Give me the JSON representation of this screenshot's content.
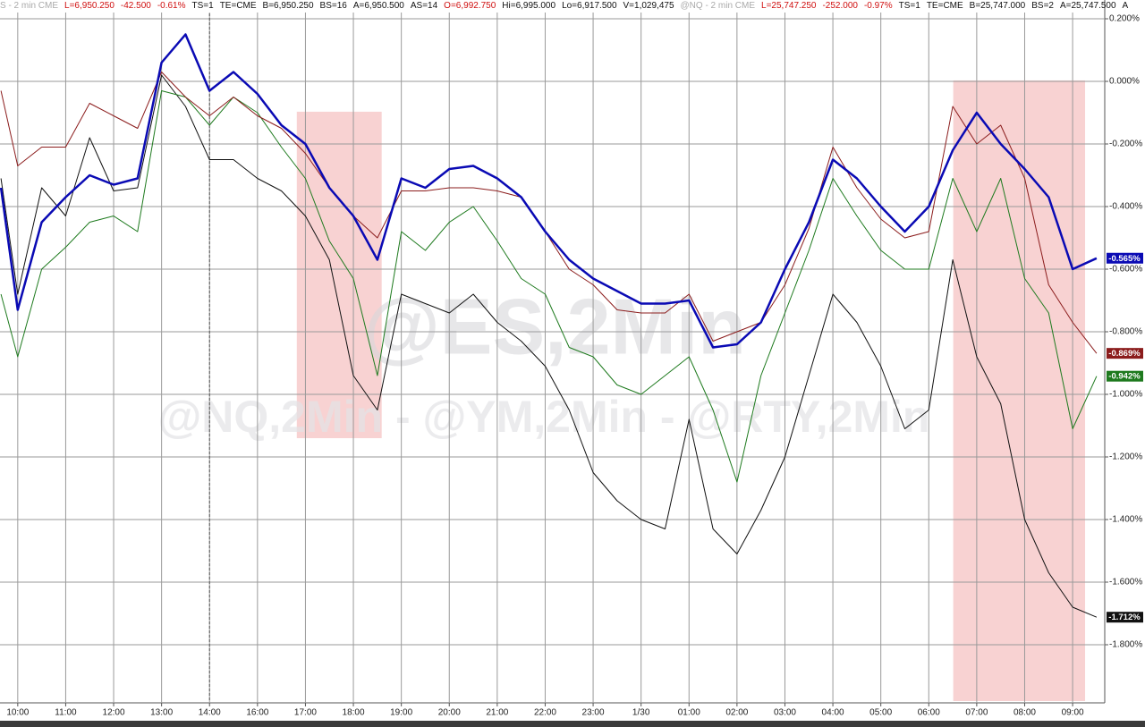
{
  "header": {
    "items": [
      {
        "text": "S - 2 min  CME",
        "color": "#aaaaaa"
      },
      {
        "text": "L=6,950.250",
        "color": "#d01010"
      },
      {
        "text": "-42.500",
        "color": "#d01010"
      },
      {
        "text": "-0.61%",
        "color": "#d01010"
      },
      {
        "text": "TS=1",
        "color": "#111111"
      },
      {
        "text": "TE=CME",
        "color": "#111111"
      },
      {
        "text": "B=6,950.250",
        "color": "#111111"
      },
      {
        "text": "BS=16",
        "color": "#111111"
      },
      {
        "text": "A=6,950.500",
        "color": "#111111"
      },
      {
        "text": "AS=14",
        "color": "#111111"
      },
      {
        "text": "O=6,992.750",
        "color": "#d01010"
      },
      {
        "text": "Hi=6,995.000",
        "color": "#111111"
      },
      {
        "text": "Lo=6,917.500",
        "color": "#111111"
      },
      {
        "text": "V=1,029,475",
        "color": "#111111"
      },
      {
        "text": "@NQ - 2 min  CME",
        "color": "#aaaaaa"
      },
      {
        "text": "L=25,747.250",
        "color": "#d01010"
      },
      {
        "text": "-252.000",
        "color": "#d01010"
      },
      {
        "text": "-0.97%",
        "color": "#d01010"
      },
      {
        "text": "TS=1",
        "color": "#111111"
      },
      {
        "text": "TE=CME",
        "color": "#111111"
      },
      {
        "text": "B=25,747.000",
        "color": "#111111"
      },
      {
        "text": "BS=2",
        "color": "#111111"
      },
      {
        "text": "A=25,747.500",
        "color": "#111111"
      },
      {
        "text": "A",
        "color": "#111111"
      }
    ]
  },
  "chart_data": {
    "type": "line",
    "watermark": [
      "@ES,2Min",
      "@NQ,2Min - @YM,2Min - @RTY,2Min"
    ],
    "xlim": [
      -0.37,
      22.67
    ],
    "ylim": [
      -1.98,
      0.26
    ],
    "xticks": [
      {
        "value": 0,
        "label": "10:00"
      },
      {
        "value": 1,
        "label": "11:00"
      },
      {
        "value": 2,
        "label": "12:00"
      },
      {
        "value": 3,
        "label": "13:00"
      },
      {
        "value": 4,
        "label": "14:00"
      },
      {
        "value": 5,
        "label": "16:00"
      },
      {
        "value": 6,
        "label": "17:00"
      },
      {
        "value": 7,
        "label": "18:00"
      },
      {
        "value": 8,
        "label": "19:00"
      },
      {
        "value": 9,
        "label": "20:00"
      },
      {
        "value": 10,
        "label": "21:00"
      },
      {
        "value": 11,
        "label": "22:00"
      },
      {
        "value": 12,
        "label": "23:00"
      },
      {
        "value": 13,
        "label": "1/30"
      },
      {
        "value": 14,
        "label": "01:00"
      },
      {
        "value": 15,
        "label": "02:00"
      },
      {
        "value": 16,
        "label": "03:00"
      },
      {
        "value": 17,
        "label": "04:00"
      },
      {
        "value": 18,
        "label": "05:00"
      },
      {
        "value": 19,
        "label": "06:00"
      },
      {
        "value": 20,
        "label": "07:00"
      },
      {
        "value": 21,
        "label": "08:00"
      },
      {
        "value": 22,
        "label": "09:00"
      }
    ],
    "yticks": [
      {
        "value": 0.2,
        "label": "0.200%"
      },
      {
        "value": 0,
        "label": "0.000%"
      },
      {
        "value": -0.2,
        "label": "-0.200%"
      },
      {
        "value": -0.4,
        "label": "-0.400%"
      },
      {
        "value": -0.6,
        "label": "-0.600%"
      },
      {
        "value": -0.8,
        "label": "-0.800%"
      },
      {
        "value": -1.0,
        "label": "-1.000%"
      },
      {
        "value": -1.2,
        "label": "-1.200%"
      },
      {
        "value": -1.4,
        "label": "-1.400%"
      },
      {
        "value": -1.6,
        "label": "-1.600%"
      },
      {
        "value": -1.8,
        "label": "-1.800%"
      }
    ],
    "grid": true,
    "session_break": 4,
    "highlights": [
      {
        "x": [
          5.82,
          7.59
        ],
        "y": [
          -0.097,
          -1.14
        ],
        "color": "#f4b4b4"
      },
      {
        "x": [
          19.51,
          22.26
        ],
        "y": [
          0.003,
          -1.98
        ],
        "color": "#f4b4b4"
      }
    ],
    "x": [
      -0.35,
      0,
      0.5,
      1,
      1.5,
      2,
      2.5,
      3,
      3.5,
      4,
      4.5,
      5,
      5.5,
      6,
      6.5,
      7,
      7.5,
      8,
      8.5,
      9,
      9.5,
      10,
      10.5,
      11,
      11.5,
      12,
      12.5,
      13,
      13.5,
      14,
      14.5,
      15,
      15.5,
      16,
      16.5,
      17,
      17.5,
      18,
      18.5,
      19,
      19.5,
      20,
      20.5,
      21,
      21.5,
      22,
      22.5
    ],
    "series": [
      {
        "color": "#111111",
        "width": 1,
        "end_label": "-1.712%",
        "values": [
          -0.31,
          -0.68,
          -0.34,
          -0.43,
          -0.18,
          -0.35,
          -0.34,
          0.02,
          -0.08,
          -0.25,
          -0.25,
          -0.31,
          -0.35,
          -0.43,
          -0.57,
          -0.94,
          -1.05,
          -0.68,
          -0.71,
          -0.74,
          -0.68,
          -0.77,
          -0.83,
          -0.91,
          -1.05,
          -1.25,
          -1.34,
          -1.4,
          -1.43,
          -1.08,
          -1.43,
          -1.51,
          -1.37,
          -1.2,
          -0.94,
          -0.68,
          -0.77,
          -0.91,
          -1.11,
          -1.05,
          -0.57,
          -0.88,
          -1.03,
          -1.4,
          -1.57,
          -1.68,
          -1.712
        ]
      },
      {
        "color": "#1e7a1e",
        "width": 1,
        "end_label": "-0.942%",
        "values": [
          -0.68,
          -0.88,
          -0.6,
          -0.53,
          -0.45,
          -0.43,
          -0.48,
          -0.03,
          -0.05,
          -0.14,
          -0.05,
          -0.1,
          -0.21,
          -0.31,
          -0.51,
          -0.63,
          -0.94,
          -0.48,
          -0.54,
          -0.45,
          -0.4,
          -0.51,
          -0.63,
          -0.68,
          -0.85,
          -0.88,
          -0.97,
          -1.0,
          -0.94,
          -0.88,
          -1.05,
          -1.28,
          -0.94,
          -0.74,
          -0.54,
          -0.31,
          -0.43,
          -0.54,
          -0.6,
          -0.6,
          -0.31,
          -0.48,
          -0.31,
          -0.63,
          -0.74,
          -1.11,
          -0.942
        ]
      },
      {
        "color": "#8b1c1c",
        "width": 1,
        "end_label": "-0.869%",
        "values": [
          -0.03,
          -0.27,
          -0.21,
          -0.21,
          -0.07,
          -0.11,
          -0.15,
          0.03,
          -0.05,
          -0.11,
          -0.05,
          -0.11,
          -0.15,
          -0.23,
          -0.34,
          -0.43,
          -0.5,
          -0.35,
          -0.35,
          -0.34,
          -0.34,
          -0.35,
          -0.37,
          -0.48,
          -0.6,
          -0.65,
          -0.73,
          -0.74,
          -0.74,
          -0.68,
          -0.83,
          -0.8,
          -0.77,
          -0.65,
          -0.47,
          -0.21,
          -0.34,
          -0.44,
          -0.5,
          -0.48,
          -0.08,
          -0.2,
          -0.14,
          -0.31,
          -0.65,
          -0.77,
          -0.869
        ]
      },
      {
        "color": "#0a0ab4",
        "width": 2.5,
        "end_label": "-0.565%",
        "values": [
          -0.34,
          -0.73,
          -0.45,
          -0.37,
          -0.3,
          -0.33,
          -0.31,
          0.06,
          0.15,
          -0.03,
          0.03,
          -0.04,
          -0.14,
          -0.2,
          -0.34,
          -0.43,
          -0.57,
          -0.31,
          -0.34,
          -0.28,
          -0.27,
          -0.31,
          -0.37,
          -0.48,
          -0.57,
          -0.63,
          -0.67,
          -0.71,
          -0.71,
          -0.7,
          -0.85,
          -0.84,
          -0.77,
          -0.6,
          -0.45,
          -0.25,
          -0.31,
          -0.4,
          -0.48,
          -0.4,
          -0.22,
          -0.1,
          -0.2,
          -0.28,
          -0.37,
          -0.6,
          -0.565
        ]
      }
    ]
  }
}
